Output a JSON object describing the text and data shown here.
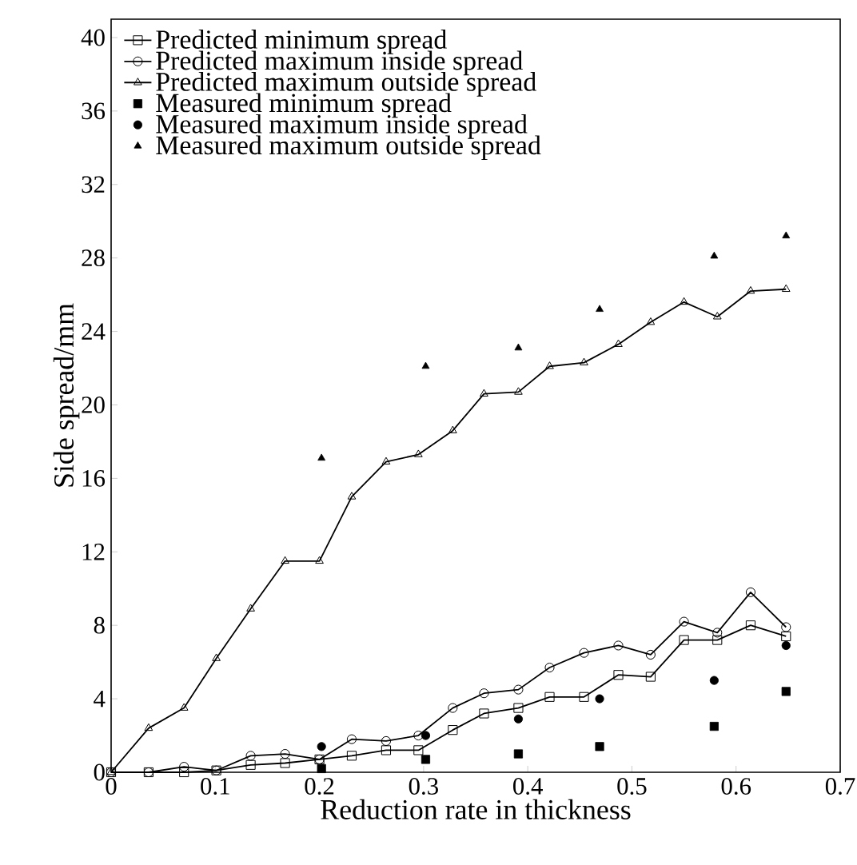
{
  "chart_data": {
    "type": "line",
    "xlabel": "Reduction rate in thickness",
    "ylabel": "Side spread/mm",
    "xlim": [
      0,
      0.7
    ],
    "ylim": [
      0,
      41
    ],
    "xticks": [
      0,
      0.1,
      0.2,
      0.3,
      0.4,
      0.5,
      0.6,
      0.7
    ],
    "yticks": [
      0,
      4,
      8,
      12,
      16,
      20,
      24,
      28,
      32,
      36,
      40
    ],
    "legend": "top left",
    "grid": false,
    "series": [
      {
        "name": "Predicted minimum spread",
        "marker": "square",
        "color": "#000000",
        "x": [
          0,
          0.036,
          0.07,
          0.101,
          0.134,
          0.167,
          0.2,
          0.231,
          0.264,
          0.295,
          0.328,
          0.358,
          0.391,
          0.421,
          0.454,
          0.487,
          0.518,
          0.55,
          0.582,
          0.614,
          0.648
        ],
        "values": [
          0,
          0,
          0,
          0.1,
          0.4,
          0.5,
          0.7,
          0.9,
          1.2,
          1.2,
          2.3,
          3.2,
          3.5,
          4.1,
          4.1,
          5.3,
          5.2,
          7.2,
          7.2,
          8.0,
          7.4
        ]
      },
      {
        "name": "Predicted maximum inside spread",
        "marker": "circle",
        "color": "#000000",
        "x": [
          0,
          0.036,
          0.07,
          0.101,
          0.134,
          0.167,
          0.2,
          0.231,
          0.264,
          0.295,
          0.328,
          0.358,
          0.391,
          0.421,
          0.454,
          0.487,
          0.518,
          0.55,
          0.582,
          0.614,
          0.648
        ],
        "values": [
          0,
          0,
          0.3,
          0.1,
          0.9,
          1.0,
          0.7,
          1.8,
          1.7,
          2.0,
          3.5,
          4.3,
          4.5,
          5.7,
          6.5,
          6.9,
          6.4,
          8.2,
          7.6,
          9.8,
          7.9
        ]
      },
      {
        "name": "Predicted maximum outside spread",
        "marker": "triangle",
        "color": "#000000",
        "x": [
          0,
          0.036,
          0.07,
          0.101,
          0.134,
          0.167,
          0.2,
          0.231,
          0.264,
          0.295,
          0.328,
          0.358,
          0.391,
          0.421,
          0.454,
          0.487,
          0.518,
          0.55,
          0.582,
          0.614,
          0.648
        ],
        "values": [
          0,
          2.4,
          3.5,
          6.2,
          8.9,
          11.5,
          11.5,
          15.0,
          16.9,
          17.3,
          18.6,
          20.6,
          20.7,
          22.1,
          22.3,
          23.3,
          24.5,
          25.6,
          24.8,
          26.2,
          26.3
        ]
      },
      {
        "name": "Measured minimum spread",
        "type": "scatter",
        "marker": "square",
        "color": "#000000",
        "x": [
          0.202,
          0.302,
          0.391,
          0.469,
          0.579,
          0.648
        ],
        "values": [
          0.2,
          0.7,
          1.0,
          1.4,
          2.5,
          4.4
        ]
      },
      {
        "name": "Measured maximum inside spread",
        "type": "scatter",
        "marker": "circle",
        "color": "#000000",
        "x": [
          0.202,
          0.302,
          0.391,
          0.469,
          0.579,
          0.648
        ],
        "values": [
          1.4,
          2.0,
          2.9,
          4.0,
          5.0,
          6.9
        ]
      },
      {
        "name": "Measured maximum outside spread",
        "type": "scatter",
        "marker": "triangle",
        "color": "#000000",
        "x": [
          0.202,
          0.302,
          0.391,
          0.469,
          0.579,
          0.648
        ],
        "values": [
          17.1,
          22.1,
          23.1,
          25.2,
          28.1,
          29.2
        ]
      }
    ]
  }
}
